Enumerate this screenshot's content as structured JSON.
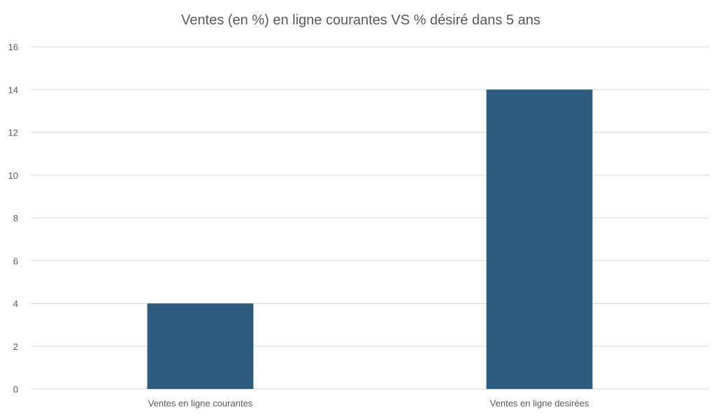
{
  "chart_data": {
    "type": "bar",
    "title": "Ventes (en %) en ligne courantes VS % désiré dans 5 ans",
    "xlabel": "",
    "ylabel": "",
    "categories": [
      "Ventes en ligne courantes",
      "Ventes en ligne desirées"
    ],
    "values": [
      4,
      14
    ],
    "ylim": [
      0,
      16
    ],
    "yticks": [
      0,
      2,
      4,
      6,
      8,
      10,
      12,
      14,
      16
    ],
    "grid": true,
    "legend": "none",
    "bar_color": "#2e5c7e"
  }
}
